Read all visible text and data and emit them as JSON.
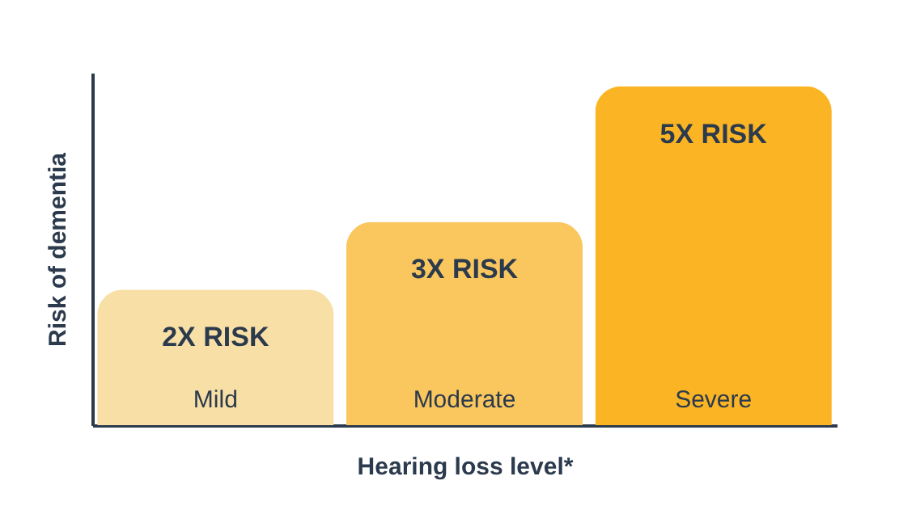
{
  "chart_data": {
    "type": "bar",
    "categories": [
      "Mild",
      "Moderate",
      "Severe"
    ],
    "values": [
      2,
      3,
      5
    ],
    "colors": [
      "#f8dfa6",
      "#fac65e",
      "#fbb424"
    ],
    "value_labels": [
      "2X RISK",
      "3X RISK",
      "5X RISK"
    ],
    "xlabel": "Hearing loss level*",
    "ylabel": "Risk of dementia",
    "grid": false
  }
}
